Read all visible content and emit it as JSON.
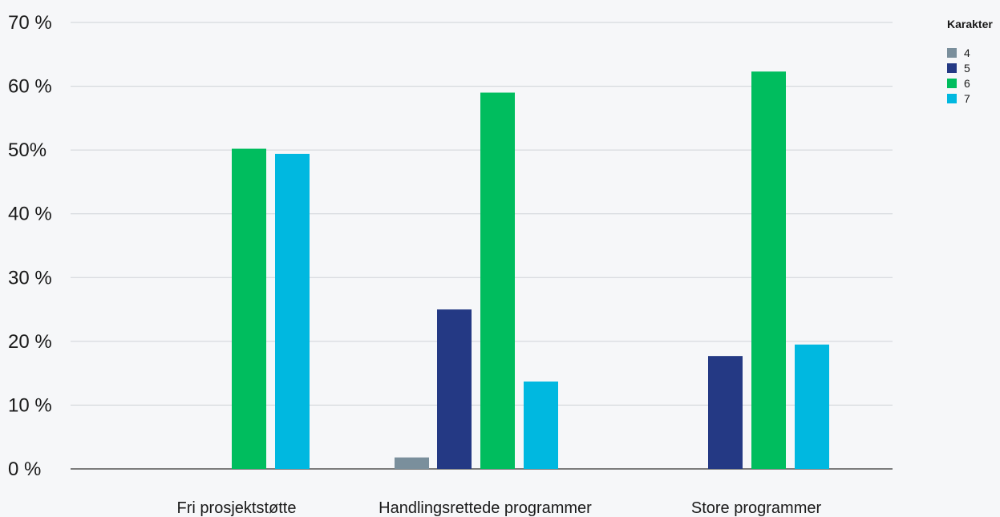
{
  "chart_data": {
    "type": "bar",
    "categories": [
      "Fri prosjektstøtte",
      "Handlingsrettede programmer",
      "Store programmer"
    ],
    "series": [
      {
        "name": "4",
        "color": "#7a8f9c",
        "values": [
          0,
          1.8,
          0
        ]
      },
      {
        "name": "5",
        "color": "#243984",
        "values": [
          0,
          25.0,
          17.7
        ]
      },
      {
        "name": "6",
        "color": "#00bd5e",
        "values": [
          50.2,
          59.0,
          62.3
        ]
      },
      {
        "name": "7",
        "color": "#00b8e0",
        "values": [
          49.4,
          13.7,
          19.5
        ]
      }
    ],
    "y_ticks": [
      {
        "value": 0,
        "label": "0 %"
      },
      {
        "value": 10,
        "label": "10 %"
      },
      {
        "value": 20,
        "label": "20 %"
      },
      {
        "value": 30,
        "label": "30 %"
      },
      {
        "value": 40,
        "label": "40 %"
      },
      {
        "value": 50,
        "label": "50%"
      },
      {
        "value": 60,
        "label": "60 %"
      },
      {
        "value": 70,
        "label": "70 %"
      }
    ],
    "ylim": [
      0,
      70
    ],
    "legend_title": "Karakter",
    "legend_position": "top-right",
    "grid": true
  }
}
